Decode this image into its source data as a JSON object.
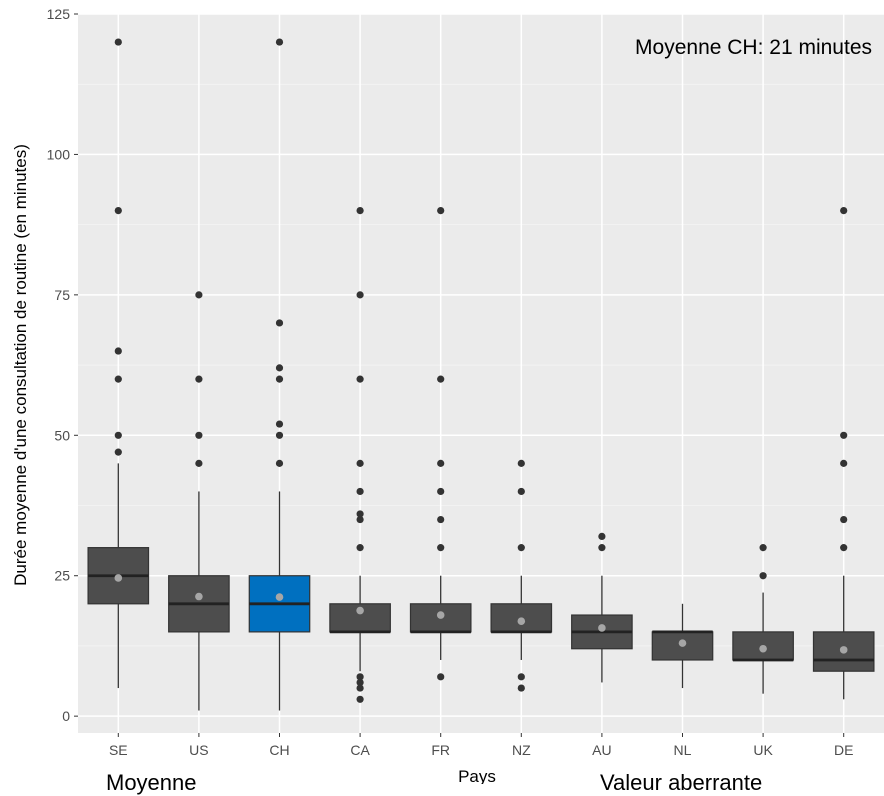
{
  "chart_data": {
    "type": "box",
    "title": "",
    "annotation": "Moyenne CH: 21 minutes",
    "xlabel": "Pays",
    "ylabel": "Durée moyenne d'une consultation de routine (en minutes)",
    "ylim": [
      -3,
      125
    ],
    "yticks": [
      0,
      25,
      50,
      75,
      100,
      125
    ],
    "grid": true,
    "background": "#ebebeb",
    "categories": [
      "SE",
      "US",
      "CH",
      "CA",
      "FR",
      "NZ",
      "AU",
      "NL",
      "UK",
      "DE"
    ],
    "highlight": "CH",
    "colors": {
      "box": "#4d4d4d",
      "highlight": "#0070c0",
      "mean_point": "#a6a6a6",
      "outlier": "#333333"
    },
    "boxes": [
      {
        "category": "SE",
        "min": 5,
        "q1": 20,
        "median": 25,
        "q3": 30,
        "max": 45,
        "mean": 24.6,
        "outliers": [
          47,
          50,
          60,
          65,
          90,
          120
        ]
      },
      {
        "category": "US",
        "min": 1,
        "q1": 15,
        "median": 20,
        "q3": 25,
        "max": 40,
        "mean": 21.3,
        "outliers": [
          45,
          50,
          60,
          75
        ]
      },
      {
        "category": "CH",
        "min": 1,
        "q1": 15,
        "median": 20,
        "q3": 25,
        "max": 40,
        "mean": 21.2,
        "outliers": [
          45,
          50,
          52,
          60,
          62,
          70,
          120
        ]
      },
      {
        "category": "CA",
        "min": 8,
        "q1": 15,
        "median": 15,
        "q3": 20,
        "max": 25,
        "mean": 18.8,
        "outliers": [
          3,
          5,
          6,
          7,
          30,
          35,
          36,
          40,
          45,
          60,
          75,
          90
        ]
      },
      {
        "category": "FR",
        "min": 10,
        "q1": 15,
        "median": 15,
        "q3": 20,
        "max": 25,
        "mean": 18,
        "outliers": [
          7,
          30,
          35,
          40,
          45,
          60,
          90
        ]
      },
      {
        "category": "NZ",
        "min": 10,
        "q1": 15,
        "median": 15,
        "q3": 20,
        "max": 25,
        "mean": 16.9,
        "outliers": [
          5,
          7,
          30,
          40,
          45
        ]
      },
      {
        "category": "AU",
        "min": 6,
        "q1": 12,
        "median": 15,
        "q3": 18,
        "max": 25,
        "mean": 15.7,
        "outliers": [
          30,
          32
        ]
      },
      {
        "category": "NL",
        "min": 5,
        "q1": 10,
        "median": 15,
        "q3": 15,
        "max": 20,
        "mean": 13,
        "outliers": []
      },
      {
        "category": "UK",
        "min": 4,
        "q1": 10,
        "median": 10,
        "q3": 15,
        "max": 22,
        "mean": 12,
        "outliers": [
          25,
          30
        ]
      },
      {
        "category": "DE",
        "min": 3,
        "q1": 8,
        "median": 10,
        "q3": 15,
        "max": 25,
        "mean": 11.8,
        "outliers": [
          30,
          35,
          45,
          50,
          90
        ]
      }
    ]
  },
  "footer": {
    "left_text": "Moyenne",
    "right_text": "Valeur aberrante"
  }
}
